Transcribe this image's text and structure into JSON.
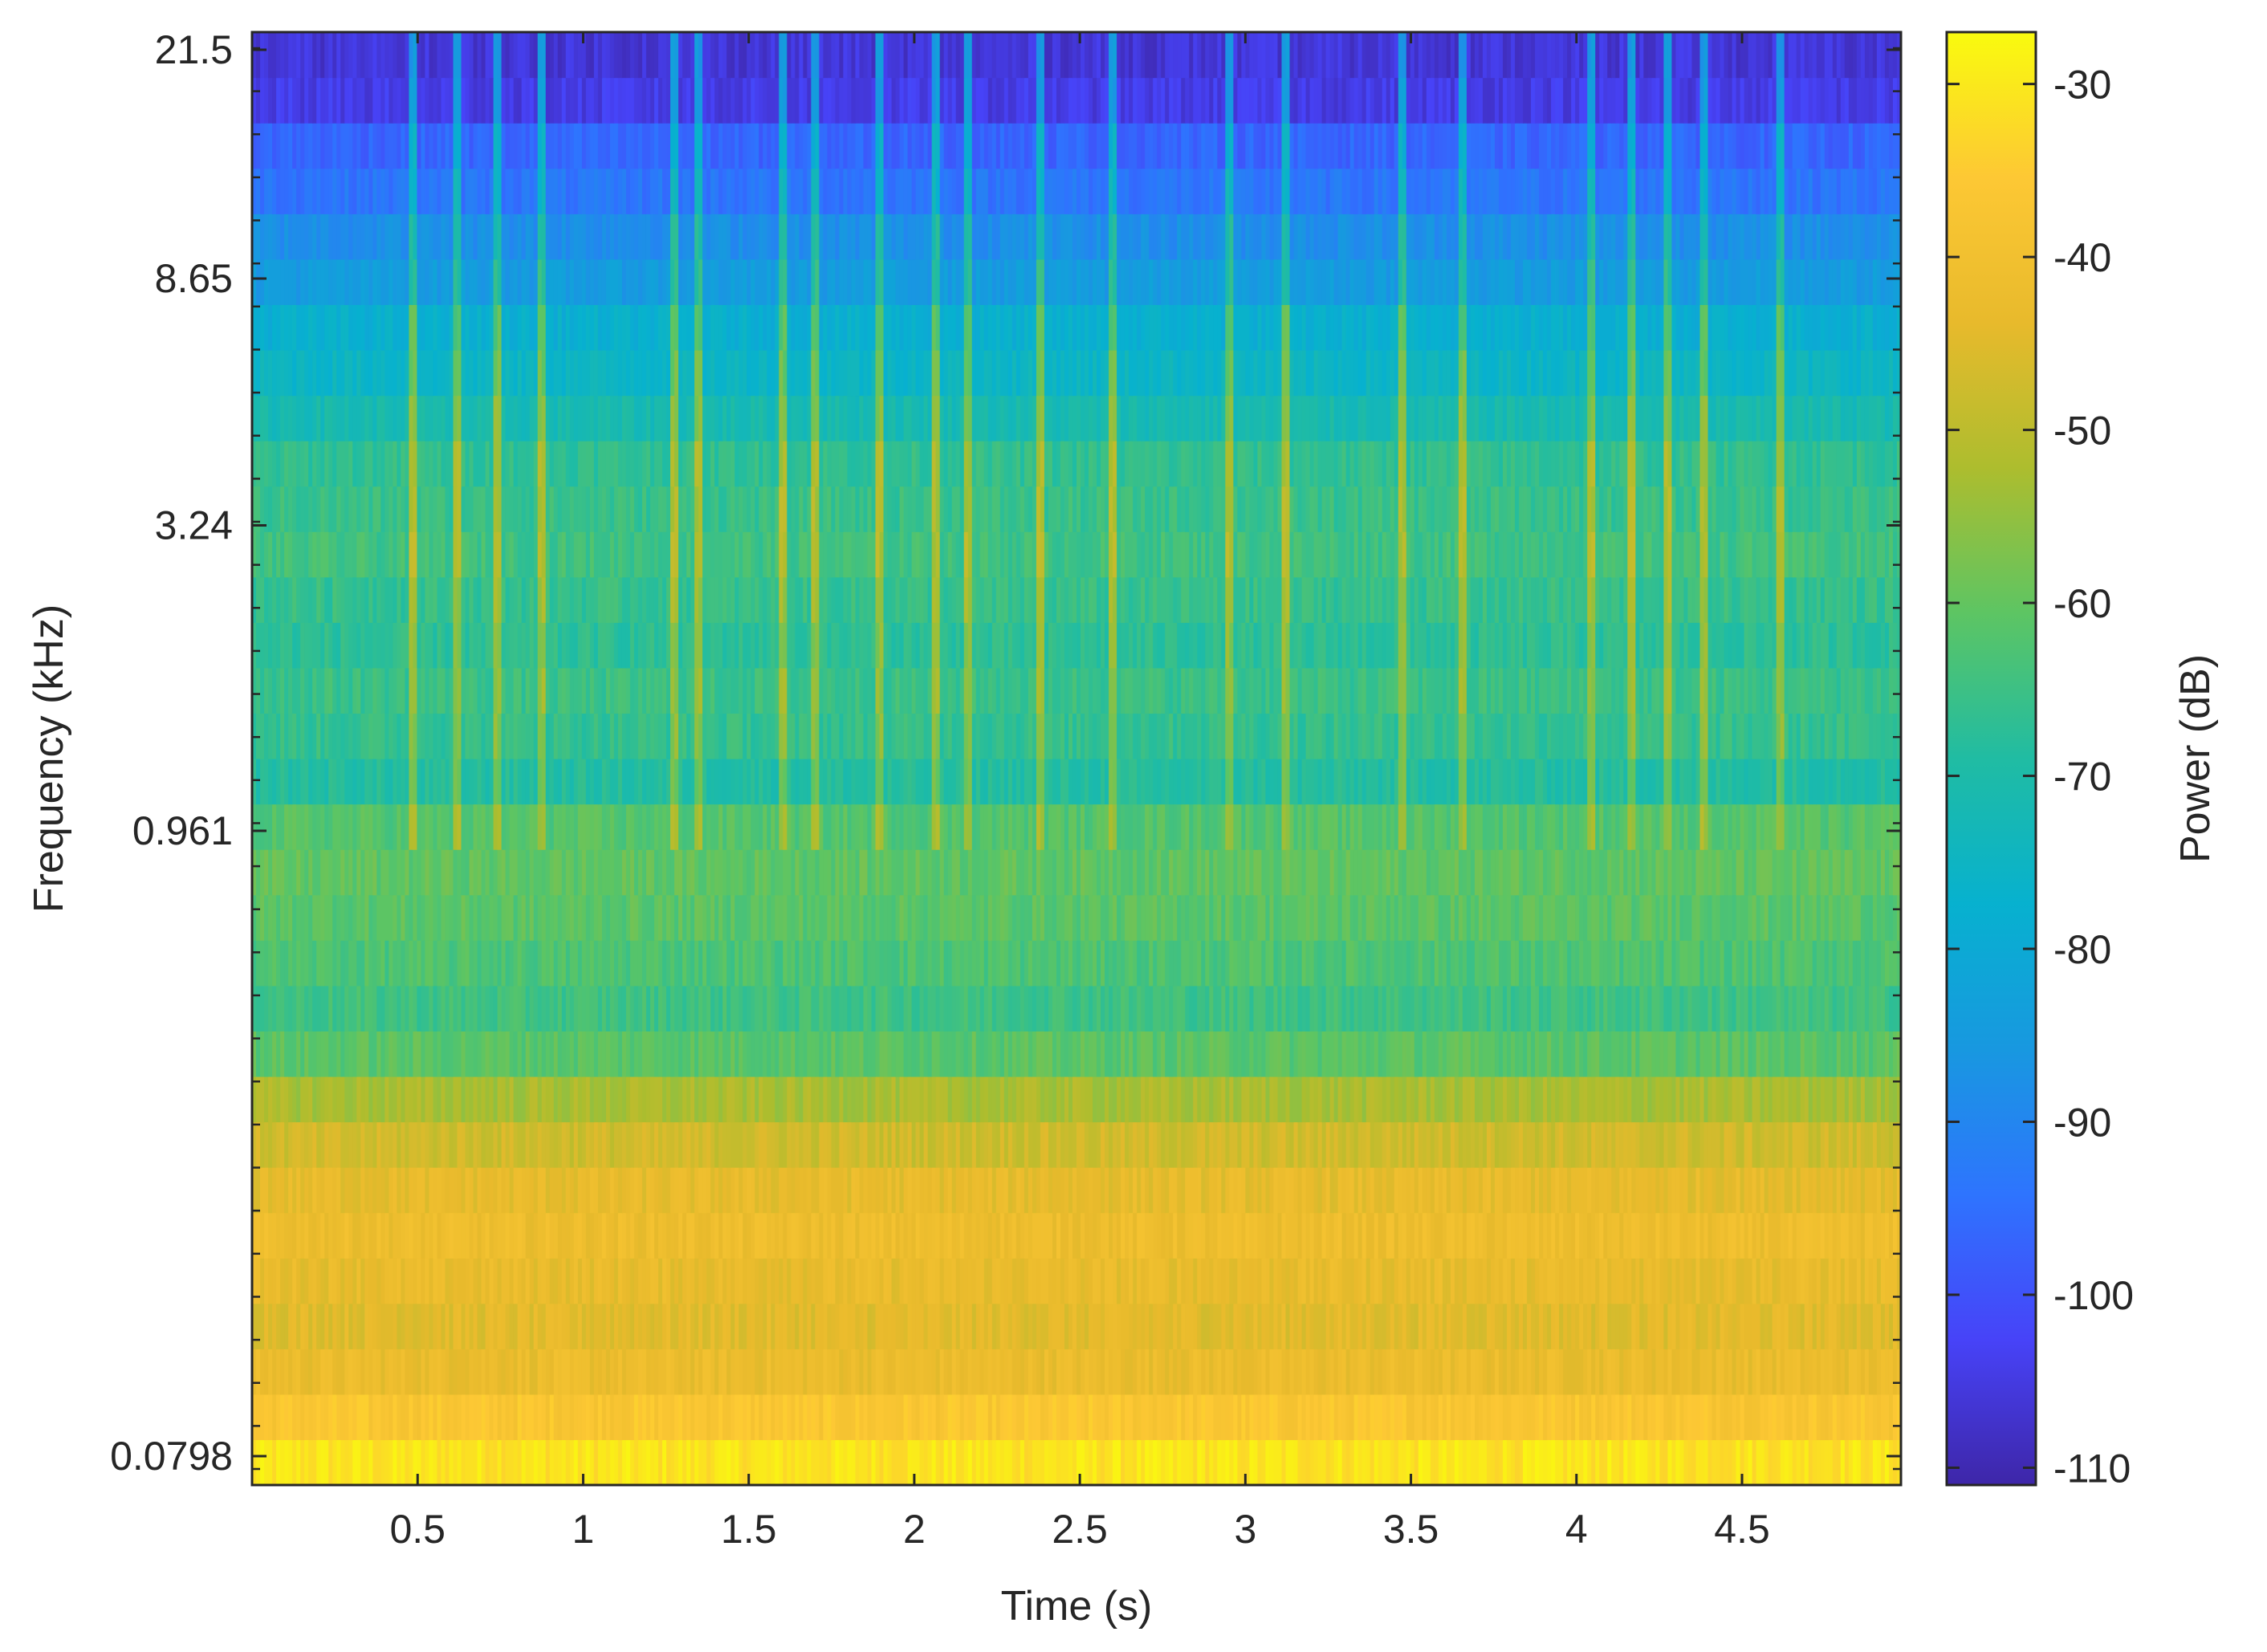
{
  "chart_data": {
    "type": "heatmap",
    "title": "",
    "xlabel": "Time (s)",
    "ylabel": "Frequency (kHz)",
    "colorbar_label": "Power (dB)",
    "xlim": [
      0.0,
      4.98
    ],
    "x_ticks": [
      0.5,
      1,
      1.5,
      2,
      2.5,
      3,
      3.5,
      4,
      4.5
    ],
    "x_tick_labels": [
      "0.5",
      "1",
      "1.5",
      "2",
      "2.5",
      "3",
      "3.5",
      "4",
      "4.5"
    ],
    "y_scale": "log",
    "ylim_khz": [
      0.0798,
      21.5
    ],
    "y_ticks_khz": [
      0.0798,
      0.961,
      3.24,
      8.65,
      21.5
    ],
    "y_tick_labels": [
      "0.0798",
      "0.961",
      "3.24",
      "8.65",
      "21.5"
    ],
    "colorbar_ticks": [
      -30,
      -40,
      -50,
      -60,
      -70,
      -80,
      -90,
      -100,
      -110
    ],
    "colorbar_tick_labels": [
      "-30",
      "-40",
      "-50",
      "-60",
      "-70",
      "-80",
      "-90",
      "-100",
      "-110"
    ],
    "clim_db": [
      -111,
      -27
    ],
    "colormap": "parula",
    "colormap_stops": [
      "#3e26a8",
      "#4743f8",
      "#2e74fe",
      "#1898e0",
      "#07b1cf",
      "#20bca3",
      "#5dc563",
      "#adbd2e",
      "#e8ba2c",
      "#fdc834",
      "#f9fb0e"
    ],
    "num_frequency_bands": 32,
    "band_mean_power_db_low_to_high": [
      -31,
      -37,
      -42,
      -44,
      -43,
      -42,
      -44,
      -47,
      -52,
      -61,
      -64,
      -63,
      -61,
      -60,
      -62,
      -68,
      -66,
      -65,
      -67,
      -66,
      -65,
      -66,
      -67,
      -72,
      -75,
      -78,
      -84,
      -88,
      -93,
      -97,
      -105,
      -106
    ],
    "transient_times_s": [
      0.48,
      0.62,
      0.74,
      0.88,
      1.28,
      1.35,
      1.6,
      1.7,
      1.89,
      2.07,
      2.16,
      2.38,
      2.6,
      2.95,
      3.12,
      3.47,
      3.66,
      4.05,
      4.17,
      4.28,
      4.39,
      4.61
    ]
  }
}
